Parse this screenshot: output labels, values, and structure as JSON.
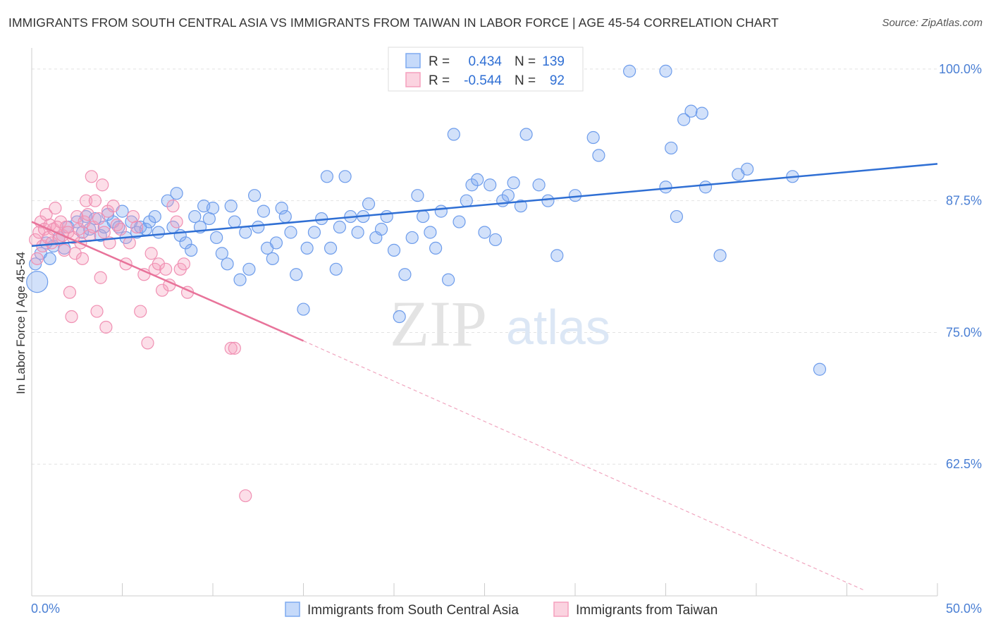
{
  "header": {
    "title": "IMMIGRANTS FROM SOUTH CENTRAL ASIA VS IMMIGRANTS FROM TAIWAN IN LABOR FORCE | AGE 45-54 CORRELATION CHART",
    "source": "Source: ZipAtlas.com"
  },
  "watermark": {
    "zip": "ZIP",
    "atlas": "atlas"
  },
  "legend_box": {
    "rows": [
      {
        "r_label": "R =",
        "r_value": "0.434",
        "n_label": "N =",
        "n_value": "139",
        "color": "#7eaaf0"
      },
      {
        "r_label": "R =",
        "r_value": "-0.544",
        "n_label": "N =",
        "n_value": "92",
        "color": "#f5a0bd"
      }
    ]
  },
  "chart_data": {
    "type": "scatter",
    "title": "IMMIGRANTS FROM SOUTH CENTRAL ASIA VS IMMIGRANTS FROM TAIWAN IN LABOR FORCE | AGE 45-54 CORRELATION CHART",
    "xlabel": "",
    "ylabel": "In Labor Force | Age 45-54",
    "xlim": [
      0,
      50
    ],
    "ylim": [
      50,
      102
    ],
    "x_tick_labels": [
      "0.0%",
      "50.0%"
    ],
    "y_ticks": [
      62.5,
      75.0,
      87.5,
      100.0
    ],
    "y_tick_labels": [
      "62.5%",
      "75.0%",
      "87.5%",
      "100.0%"
    ],
    "grid": true,
    "legend_position": "bottom",
    "series": [
      {
        "name": "Immigrants from South Central Asia",
        "color": "#7eaaf0",
        "trend": {
          "x0": 0,
          "y0": 83.2,
          "x1": 50,
          "y1": 91.0
        },
        "points": [
          [
            0.2,
            81.5
          ],
          [
            0.3,
            79.8
          ],
          [
            0.5,
            82.5
          ],
          [
            0.8,
            83.5
          ],
          [
            1.0,
            82.0
          ],
          [
            1.2,
            83.2
          ],
          [
            1.5,
            84.0
          ],
          [
            1.8,
            83.0
          ],
          [
            2.0,
            85.0
          ],
          [
            2.5,
            85.5
          ],
          [
            2.8,
            84.5
          ],
          [
            3.0,
            86.0
          ],
          [
            3.2,
            84.8
          ],
          [
            3.5,
            85.8
          ],
          [
            3.8,
            84.2
          ],
          [
            4.0,
            85.0
          ],
          [
            4.2,
            86.2
          ],
          [
            4.5,
            85.5
          ],
          [
            4.8,
            85.0
          ],
          [
            5.0,
            86.5
          ],
          [
            5.2,
            84.0
          ],
          [
            5.5,
            85.5
          ],
          [
            5.8,
            84.5
          ],
          [
            6.0,
            85.0
          ],
          [
            6.3,
            84.8
          ],
          [
            6.5,
            85.5
          ],
          [
            6.8,
            86.0
          ],
          [
            7.0,
            84.5
          ],
          [
            7.5,
            87.5
          ],
          [
            7.8,
            85.0
          ],
          [
            8.0,
            88.2
          ],
          [
            8.2,
            84.2
          ],
          [
            8.5,
            83.5
          ],
          [
            8.8,
            82.8
          ],
          [
            9.0,
            86.0
          ],
          [
            9.3,
            85.0
          ],
          [
            9.5,
            87.0
          ],
          [
            9.8,
            85.8
          ],
          [
            10.0,
            86.8
          ],
          [
            10.2,
            84.0
          ],
          [
            10.5,
            82.5
          ],
          [
            10.8,
            81.5
          ],
          [
            11.0,
            87.0
          ],
          [
            11.2,
            85.5
          ],
          [
            11.5,
            80.0
          ],
          [
            11.8,
            84.5
          ],
          [
            12.0,
            81.0
          ],
          [
            12.3,
            88.0
          ],
          [
            12.5,
            85.0
          ],
          [
            12.8,
            86.5
          ],
          [
            13.0,
            83.0
          ],
          [
            13.3,
            82.0
          ],
          [
            13.5,
            83.5
          ],
          [
            13.8,
            86.8
          ],
          [
            14.0,
            86.0
          ],
          [
            14.3,
            84.5
          ],
          [
            14.6,
            80.5
          ],
          [
            15.0,
            77.2
          ],
          [
            15.2,
            83.0
          ],
          [
            15.6,
            84.5
          ],
          [
            16.0,
            85.8
          ],
          [
            16.3,
            89.8
          ],
          [
            16.5,
            83.0
          ],
          [
            16.8,
            81.0
          ],
          [
            17.0,
            85.0
          ],
          [
            17.3,
            89.8
          ],
          [
            17.6,
            86.0
          ],
          [
            18.0,
            84.5
          ],
          [
            18.3,
            86.0
          ],
          [
            18.6,
            87.2
          ],
          [
            19.0,
            84.0
          ],
          [
            19.3,
            84.8
          ],
          [
            19.6,
            86.0
          ],
          [
            20.0,
            82.8
          ],
          [
            20.3,
            76.5
          ],
          [
            20.6,
            80.5
          ],
          [
            21.0,
            84.0
          ],
          [
            21.3,
            88.0
          ],
          [
            21.6,
            86.0
          ],
          [
            22.0,
            84.5
          ],
          [
            22.3,
            83.0
          ],
          [
            22.6,
            86.5
          ],
          [
            23.0,
            80.0
          ],
          [
            23.3,
            93.8
          ],
          [
            23.6,
            85.5
          ],
          [
            24.0,
            87.5
          ],
          [
            24.3,
            89.0
          ],
          [
            24.6,
            89.5
          ],
          [
            25.0,
            84.5
          ],
          [
            25.3,
            89.0
          ],
          [
            25.6,
            83.8
          ],
          [
            26.0,
            87.5
          ],
          [
            26.3,
            88.0
          ],
          [
            26.6,
            89.2
          ],
          [
            27.0,
            87.0
          ],
          [
            27.3,
            93.8
          ],
          [
            27.6,
            99.8
          ],
          [
            28.0,
            89.0
          ],
          [
            28.5,
            87.5
          ],
          [
            29.0,
            82.3
          ],
          [
            30.0,
            88.0
          ],
          [
            31.0,
            93.5
          ],
          [
            31.3,
            91.8
          ],
          [
            33.0,
            99.8
          ],
          [
            35.0,
            99.8
          ],
          [
            35.0,
            88.8
          ],
          [
            35.3,
            92.5
          ],
          [
            35.6,
            86.0
          ],
          [
            36.0,
            95.2
          ],
          [
            36.4,
            96.0
          ],
          [
            37.0,
            95.8
          ],
          [
            37.2,
            88.8
          ],
          [
            38.0,
            82.3
          ],
          [
            39.0,
            90.0
          ],
          [
            39.5,
            90.5
          ],
          [
            42.0,
            89.8
          ],
          [
            43.5,
            71.5
          ]
        ]
      },
      {
        "name": "Immigrants from Taiwan",
        "color": "#f5a0bd",
        "trend": {
          "x0": 0,
          "y0": 85.5,
          "x1": 15,
          "y1": 74.2,
          "dash_to_x": 46,
          "dash_to_y": 50.5
        },
        "points": [
          [
            0.2,
            83.8
          ],
          [
            0.3,
            82.0
          ],
          [
            0.4,
            84.5
          ],
          [
            0.5,
            85.5
          ],
          [
            0.6,
            83.2
          ],
          [
            0.7,
            84.8
          ],
          [
            0.8,
            86.2
          ],
          [
            0.9,
            84.0
          ],
          [
            1.0,
            85.2
          ],
          [
            1.1,
            83.5
          ],
          [
            1.2,
            84.8
          ],
          [
            1.3,
            86.8
          ],
          [
            1.4,
            85.0
          ],
          [
            1.5,
            83.8
          ],
          [
            1.6,
            85.5
          ],
          [
            1.7,
            84.2
          ],
          [
            1.8,
            82.8
          ],
          [
            1.9,
            85.0
          ],
          [
            2.0,
            84.5
          ],
          [
            2.1,
            78.8
          ],
          [
            2.2,
            76.5
          ],
          [
            2.3,
            84.0
          ],
          [
            2.4,
            82.5
          ],
          [
            2.5,
            86.0
          ],
          [
            2.6,
            84.8
          ],
          [
            2.7,
            83.5
          ],
          [
            2.8,
            82.0
          ],
          [
            2.9,
            85.5
          ],
          [
            3.0,
            87.5
          ],
          [
            3.1,
            86.2
          ],
          [
            3.2,
            84.2
          ],
          [
            3.3,
            89.8
          ],
          [
            3.4,
            85.0
          ],
          [
            3.5,
            87.5
          ],
          [
            3.6,
            77.0
          ],
          [
            3.7,
            85.8
          ],
          [
            3.8,
            80.2
          ],
          [
            3.9,
            89.0
          ],
          [
            4.0,
            84.5
          ],
          [
            4.1,
            75.5
          ],
          [
            4.2,
            86.5
          ],
          [
            4.3,
            83.5
          ],
          [
            4.5,
            87.0
          ],
          [
            4.7,
            85.2
          ],
          [
            4.9,
            84.8
          ],
          [
            5.2,
            81.5
          ],
          [
            5.4,
            83.5
          ],
          [
            5.6,
            86.0
          ],
          [
            5.8,
            85.0
          ],
          [
            6.0,
            77.0
          ],
          [
            6.2,
            80.5
          ],
          [
            6.4,
            74.0
          ],
          [
            6.6,
            82.5
          ],
          [
            6.8,
            81.0
          ],
          [
            7.0,
            81.5
          ],
          [
            7.2,
            79.0
          ],
          [
            7.4,
            81.0
          ],
          [
            7.6,
            79.5
          ],
          [
            7.8,
            87.0
          ],
          [
            8.0,
            85.5
          ],
          [
            8.2,
            81.0
          ],
          [
            8.4,
            81.5
          ],
          [
            8.6,
            78.8
          ],
          [
            11.0,
            73.5
          ],
          [
            11.2,
            73.5
          ],
          [
            11.8,
            59.5
          ]
        ]
      }
    ]
  },
  "bottom_legend": {
    "items": [
      {
        "label": "Immigrants from South Central Asia",
        "color": "#7eaaf0"
      },
      {
        "label": "Immigrants from Taiwan",
        "color": "#f5a0bd"
      }
    ]
  }
}
